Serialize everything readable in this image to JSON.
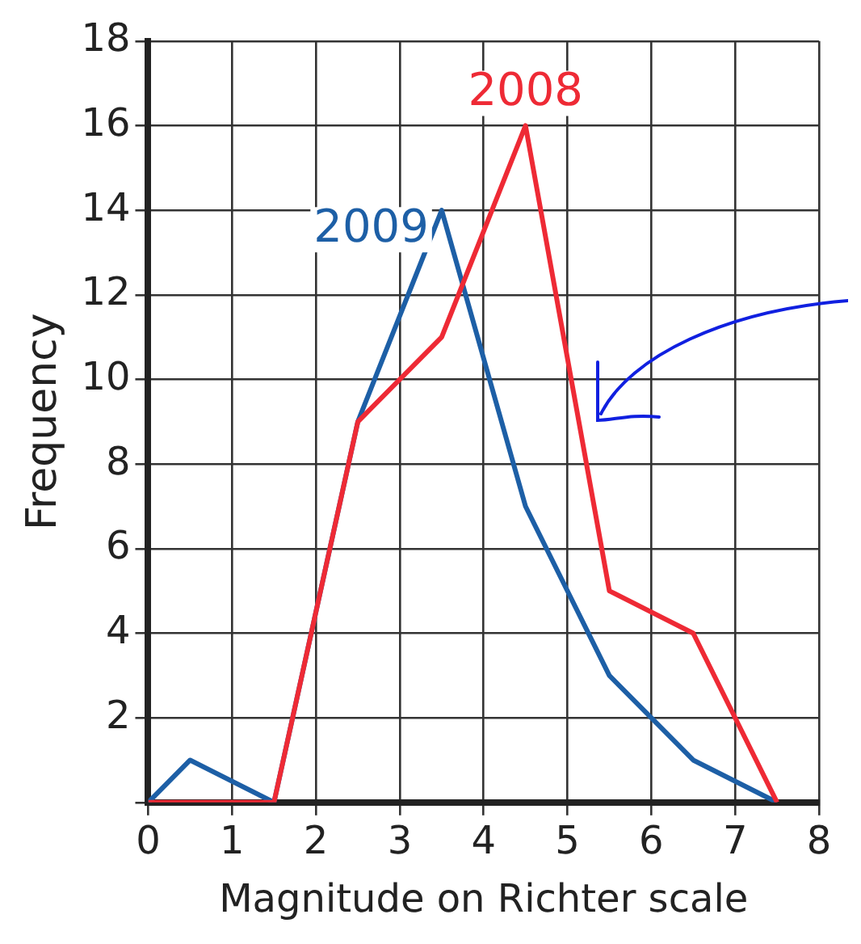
{
  "chart_data": {
    "type": "line",
    "xlabel": "Magnitude on Richter scale",
    "ylabel": "Frequency",
    "series": [
      {
        "name": "2008",
        "color": "#ee2a35",
        "x": [
          0,
          1.5,
          2.5,
          3.5,
          4.5,
          5.5,
          6.5,
          7.5
        ],
        "values": [
          0,
          0,
          9,
          11,
          16,
          5,
          4,
          0
        ]
      },
      {
        "name": "2009",
        "color": "#1d5fa6",
        "x": [
          0,
          0.5,
          1.5,
          2.5,
          3.5,
          4.5,
          5.5,
          6.5,
          7.5
        ],
        "values": [
          0,
          1,
          0,
          9,
          14,
          7,
          3,
          1,
          0
        ]
      }
    ],
    "xlim": [
      0,
      8
    ],
    "xticks": [
      0,
      1,
      2,
      3,
      4,
      5,
      6,
      7,
      8
    ],
    "ylim": [
      0,
      18
    ],
    "yticks": [
      {
        "value": 0,
        "label": null
      },
      2,
      4,
      6,
      8,
      10,
      12,
      14,
      16,
      18
    ],
    "grid": true,
    "legend": false,
    "marker": "none",
    "line_style": "solid"
  }
}
